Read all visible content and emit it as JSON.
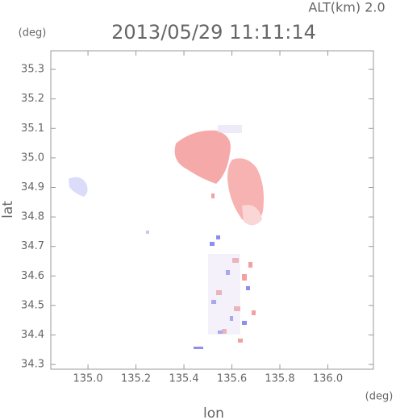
{
  "chart_data": {
    "type": "field",
    "title": "2013/05/29 11:11:14",
    "annotation": "ALT(km) 2.0",
    "xlabel": "lon",
    "ylabel": "lat",
    "xunit": "(deg)",
    "yunit": "(deg)",
    "xlim": [
      134.845,
      136.19
    ],
    "ylim": [
      34.284,
      35.363
    ],
    "xticks": [
      {
        "value": 135.0,
        "label": "135.0"
      },
      135.2,
      135.4,
      135.6,
      135.8,
      {
        "value": 136.0,
        "label": "136.0"
      }
    ],
    "yticks": [
      34.3,
      34.4,
      34.5,
      34.6,
      34.7,
      34.8,
      34.9,
      {
        "value": 35.0,
        "label": "35.0"
      },
      35.1,
      35.2,
      35.3
    ]
  }
}
